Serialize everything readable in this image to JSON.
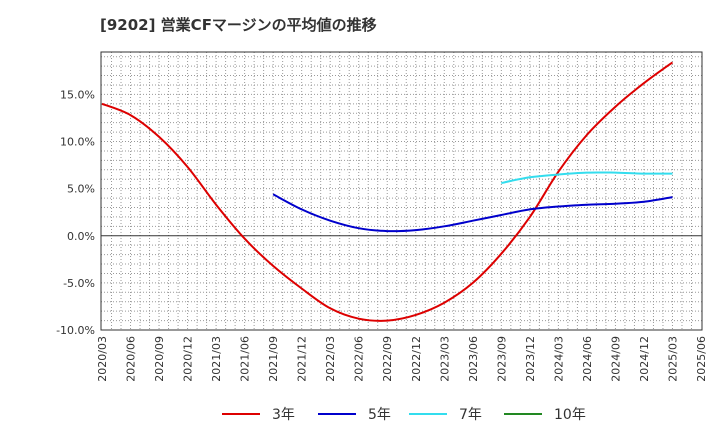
{
  "chart_data": {
    "type": "line",
    "title": "[9202]  営業CFマージンの平均値の推移",
    "xlabel": "",
    "ylabel": "",
    "ylim": [
      -10,
      19.5
    ],
    "grid": true,
    "legend_position": "bottom",
    "x_ticks": [
      "2020/03",
      "2020/06",
      "2020/09",
      "2020/12",
      "2021/03",
      "2021/06",
      "2021/09",
      "2021/12",
      "2022/03",
      "2022/06",
      "2022/09",
      "2022/12",
      "2023/03",
      "2023/06",
      "2023/09",
      "2023/12",
      "2024/03",
      "2024/06",
      "2024/09",
      "2024/12",
      "2025/03",
      "2025/06"
    ],
    "y_ticks": [
      {
        "value": 15,
        "label": "15.0%"
      },
      {
        "value": 10,
        "label": "10.0%"
      },
      {
        "value": 5,
        "label": "5.0%"
      },
      {
        "value": 0,
        "label": "0.0%"
      },
      {
        "value": -5,
        "label": "-5.0%"
      },
      {
        "value": -10,
        "label": "-10.0%"
      }
    ],
    "series": [
      {
        "name": "3年",
        "color": "#dd0000",
        "values": [
          14.0,
          12.8,
          10.5,
          7.3,
          3.3,
          -0.3,
          -3.2,
          -5.6,
          -7.7,
          -8.8,
          -9.0,
          -8.4,
          -7.1,
          -5.0,
          -1.9,
          2.0,
          6.8,
          10.7,
          13.7,
          16.2,
          18.4,
          null
        ]
      },
      {
        "name": "5年",
        "color": "#0000cc",
        "values": [
          null,
          null,
          null,
          null,
          null,
          null,
          4.4,
          2.8,
          1.6,
          0.8,
          0.5,
          0.6,
          1.0,
          1.6,
          2.2,
          2.8,
          3.1,
          3.3,
          3.4,
          3.6,
          4.1,
          null
        ]
      },
      {
        "name": "7年",
        "color": "#33ddee",
        "values": [
          null,
          null,
          null,
          null,
          null,
          null,
          null,
          null,
          null,
          null,
          null,
          null,
          null,
          null,
          5.6,
          6.2,
          6.5,
          6.7,
          6.7,
          6.6,
          6.6,
          null
        ]
      },
      {
        "name": "10年",
        "color": "#228822",
        "values": [
          null,
          null,
          null,
          null,
          null,
          null,
          null,
          null,
          null,
          null,
          null,
          null,
          null,
          null,
          null,
          null,
          null,
          null,
          null,
          null,
          null,
          null
        ]
      }
    ]
  }
}
